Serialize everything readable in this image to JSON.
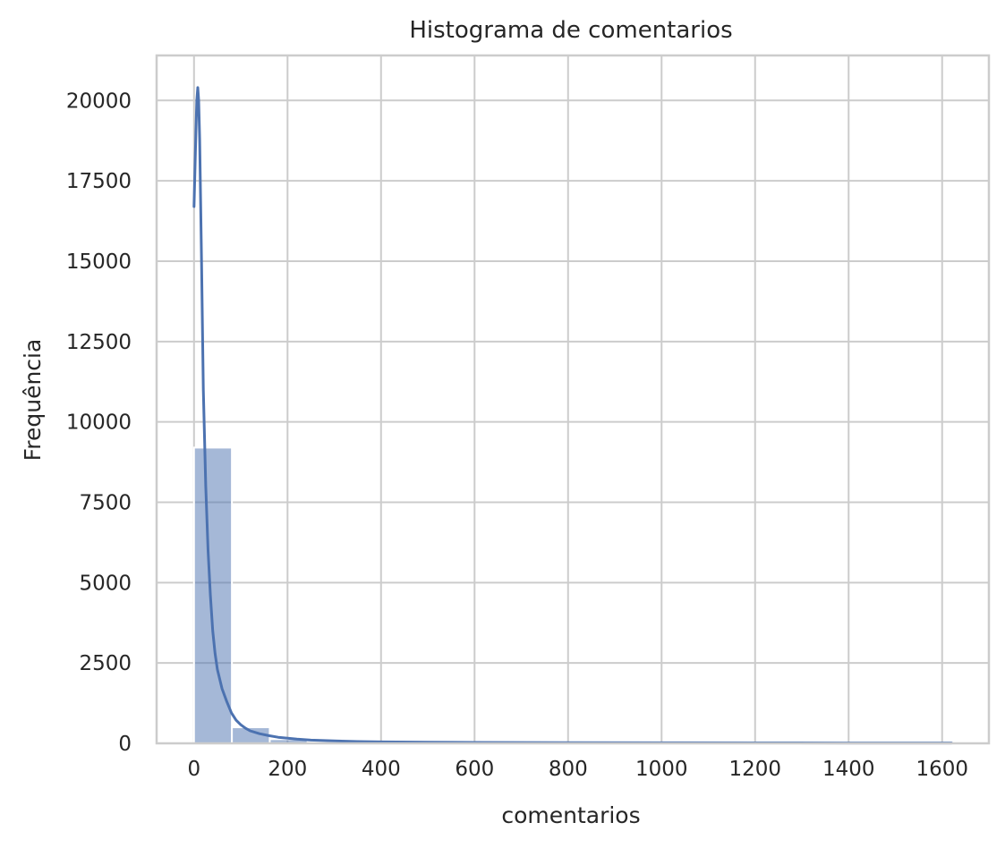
{
  "chart_data": {
    "type": "bar",
    "title": "Histograma de comentarios",
    "xlabel": "comentarios",
    "ylabel": "Frequência",
    "xlim": [
      -80,
      1700
    ],
    "ylim": [
      0,
      21400
    ],
    "x_ticks": [
      0,
      200,
      400,
      600,
      800,
      1000,
      1200,
      1400,
      1600
    ],
    "x_tick_labels": [
      "0",
      "200",
      "400",
      "600",
      "800",
      "1000",
      "1200",
      "1400",
      "1600"
    ],
    "y_ticks": [
      0,
      2500,
      5000,
      7500,
      10000,
      12500,
      15000,
      17500,
      20000
    ],
    "y_tick_labels": [
      "0",
      "2500",
      "5000",
      "7500",
      "10000",
      "12500",
      "15000",
      "17500",
      "20000"
    ],
    "grid": true,
    "colors": {
      "bar": "#4c72b0",
      "kde": "#4c72b0",
      "grid": "#cccccc",
      "text": "#262626"
    },
    "series": [
      {
        "name": "histogram",
        "bin_width": 81,
        "bins": [
          {
            "start": 0,
            "count": 9200
          },
          {
            "start": 81,
            "count": 500
          },
          {
            "start": 162,
            "count": 130
          },
          {
            "start": 243,
            "count": 55
          },
          {
            "start": 324,
            "count": 30
          },
          {
            "start": 405,
            "count": 20
          },
          {
            "start": 486,
            "count": 12
          },
          {
            "start": 567,
            "count": 8
          },
          {
            "start": 648,
            "count": 5
          },
          {
            "start": 729,
            "count": 4
          },
          {
            "start": 810,
            "count": 3
          },
          {
            "start": 891,
            "count": 2
          },
          {
            "start": 972,
            "count": 2
          },
          {
            "start": 1053,
            "count": 1
          },
          {
            "start": 1134,
            "count": 1
          },
          {
            "start": 1215,
            "count": 1
          },
          {
            "start": 1296,
            "count": 1
          },
          {
            "start": 1377,
            "count": 1
          },
          {
            "start": 1458,
            "count": 1
          },
          {
            "start": 1539,
            "count": 1
          }
        ]
      },
      {
        "name": "kde",
        "x": [
          0,
          2,
          4,
          6,
          8,
          10,
          12,
          14,
          16,
          18,
          20,
          25,
          30,
          35,
          40,
          45,
          50,
          60,
          70,
          80,
          90,
          100,
          110,
          120,
          140,
          160,
          180,
          200,
          220,
          250,
          300,
          350,
          400,
          500,
          600,
          800,
          1000,
          1200,
          1400,
          1620
        ],
        "y": [
          16700,
          17800,
          19000,
          20000,
          20400,
          20000,
          18800,
          17000,
          15000,
          13000,
          11000,
          8000,
          6000,
          4600,
          3500,
          2800,
          2300,
          1700,
          1300,
          950,
          720,
          580,
          470,
          390,
          300,
          240,
          190,
          160,
          130,
          100,
          75,
          55,
          45,
          35,
          28,
          22,
          18,
          15,
          12,
          10
        ]
      }
    ]
  }
}
